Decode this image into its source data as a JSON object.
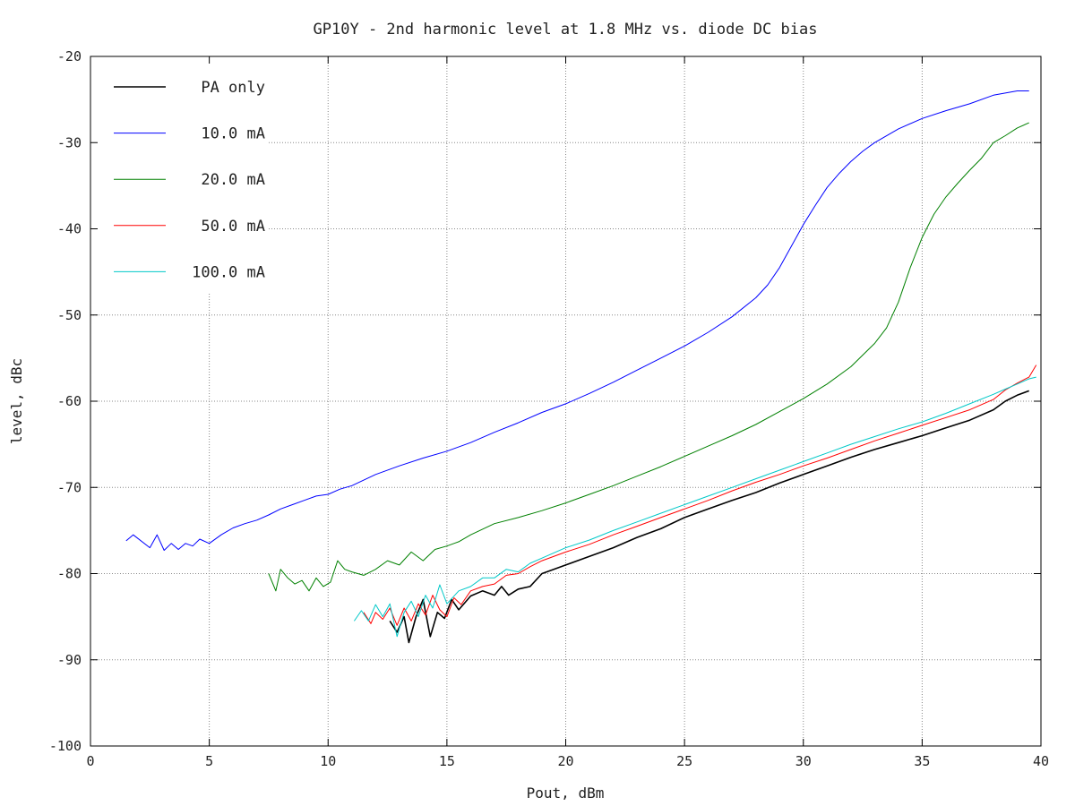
{
  "chart_data": {
    "type": "line",
    "title": "GP10Y - 2nd harmonic level at 1.8 MHz vs. diode DC bias",
    "xlabel": "Pout, dBm",
    "ylabel": "level, dBc",
    "xlim": [
      0,
      40
    ],
    "ylim": [
      -100,
      -20
    ],
    "xticks": [
      0,
      5,
      10,
      15,
      20,
      25,
      30,
      35,
      40
    ],
    "yticks": [
      -100,
      -90,
      -80,
      -70,
      -60,
      -50,
      -40,
      -30,
      -20
    ],
    "grid": true,
    "legend_position": "top-left",
    "series": [
      {
        "name": "PA only",
        "color": "#000000",
        "x": [
          12.6,
          12.9,
          13.2,
          13.4,
          13.7,
          14.0,
          14.3,
          14.6,
          14.9,
          15.2,
          15.5,
          16.0,
          16.5,
          17.0,
          17.3,
          17.6,
          18.0,
          18.5,
          19.0,
          20.0,
          21.0,
          22.0,
          23.0,
          24.0,
          25.0,
          26.0,
          27.0,
          28.0,
          29.0,
          30.0,
          31.0,
          32.0,
          33.0,
          34.0,
          35.0,
          36.0,
          37.0,
          38.0,
          38.5,
          39.0,
          39.5
        ],
        "values": [
          -85.5,
          -86.8,
          -85.0,
          -88.0,
          -85.0,
          -83.0,
          -87.3,
          -84.5,
          -85.2,
          -83.0,
          -84.2,
          -82.6,
          -82.0,
          -82.5,
          -81.5,
          -82.5,
          -81.8,
          -81.5,
          -80.0,
          -79.0,
          -78.0,
          -77.0,
          -75.8,
          -74.8,
          -73.5,
          -72.5,
          -71.5,
          -70.6,
          -69.5,
          -68.5,
          -67.5,
          -66.5,
          -65.6,
          -64.8,
          -64.0,
          -63.1,
          -62.2,
          -61.0,
          -60.0,
          -59.3,
          -58.8
        ]
      },
      {
        "name": "10.0 mA",
        "color": "#0000ff",
        "x": [
          1.5,
          1.8,
          2.5,
          2.8,
          3.1,
          3.4,
          3.7,
          4.0,
          4.3,
          4.6,
          5.0,
          5.5,
          6.0,
          6.5,
          7.0,
          7.5,
          8.0,
          8.5,
          9.0,
          9.5,
          10.0,
          10.5,
          11.0,
          12.0,
          13.0,
          14.0,
          15.0,
          16.0,
          17.0,
          18.0,
          19.0,
          20.0,
          21.0,
          22.0,
          23.0,
          24.0,
          25.0,
          26.0,
          27.0,
          28.0,
          28.5,
          29.0,
          29.5,
          30.0,
          30.5,
          31.0,
          31.5,
          32.0,
          32.5,
          33.0,
          34.0,
          35.0,
          36.0,
          37.0,
          38.0,
          39.0,
          39.5
        ],
        "values": [
          -76.2,
          -75.5,
          -77.0,
          -75.5,
          -77.3,
          -76.5,
          -77.2,
          -76.5,
          -76.8,
          -76.0,
          -76.5,
          -75.5,
          -74.7,
          -74.2,
          -73.8,
          -73.2,
          -72.5,
          -72.0,
          -71.5,
          -71.0,
          -70.8,
          -70.2,
          -69.8,
          -68.5,
          -67.5,
          -66.6,
          -65.8,
          -64.8,
          -63.6,
          -62.5,
          -61.3,
          -60.3,
          -59.1,
          -57.8,
          -56.4,
          -55.0,
          -53.6,
          -52.0,
          -50.2,
          -48.0,
          -46.5,
          -44.5,
          -42.0,
          -39.5,
          -37.3,
          -35.2,
          -33.6,
          -32.2,
          -31.0,
          -30.0,
          -28.4,
          -27.2,
          -26.3,
          -25.5,
          -24.5,
          -24.0,
          -24.0
        ]
      },
      {
        "name": "20.0 mA",
        "color": "#008000",
        "x": [
          7.5,
          7.8,
          8.0,
          8.3,
          8.6,
          8.9,
          9.2,
          9.5,
          9.8,
          10.1,
          10.4,
          10.7,
          11.0,
          11.5,
          12.0,
          12.5,
          13.0,
          13.5,
          14.0,
          14.5,
          15.0,
          15.5,
          16.0,
          17.0,
          18.0,
          19.0,
          20.0,
          21.0,
          22.0,
          23.0,
          24.0,
          25.0,
          26.0,
          27.0,
          28.0,
          29.0,
          30.0,
          31.0,
          32.0,
          33.0,
          33.5,
          34.0,
          34.5,
          35.0,
          35.5,
          36.0,
          36.5,
          37.0,
          37.5,
          38.0,
          38.5,
          39.0,
          39.5
        ],
        "values": [
          -80.0,
          -82.0,
          -79.5,
          -80.5,
          -81.2,
          -80.8,
          -82.0,
          -80.5,
          -81.5,
          -81.0,
          -78.5,
          -79.5,
          -79.8,
          -80.2,
          -79.5,
          -78.5,
          -79.0,
          -77.5,
          -78.5,
          -77.2,
          -76.8,
          -76.3,
          -75.5,
          -74.2,
          -73.5,
          -72.7,
          -71.8,
          -70.8,
          -69.8,
          -68.7,
          -67.6,
          -66.4,
          -65.2,
          -64.0,
          -62.7,
          -61.2,
          -59.7,
          -58.0,
          -56.0,
          -53.3,
          -51.5,
          -48.5,
          -44.5,
          -41.0,
          -38.3,
          -36.3,
          -34.7,
          -33.2,
          -31.8,
          -30.0,
          -29.2,
          -28.3,
          -27.7
        ]
      },
      {
        "name": "50.0 mA",
        "color": "#ff0000",
        "x": [
          11.5,
          11.8,
          12.0,
          12.3,
          12.6,
          12.9,
          13.2,
          13.5,
          13.8,
          14.1,
          14.4,
          14.7,
          15.0,
          15.3,
          15.6,
          16.0,
          16.5,
          17.0,
          17.5,
          18.0,
          18.5,
          19.0,
          20.0,
          21.0,
          22.0,
          23.0,
          24.0,
          25.0,
          26.0,
          27.0,
          28.0,
          29.0,
          30.0,
          31.0,
          32.0,
          33.0,
          34.0,
          35.0,
          36.0,
          37.0,
          38.0,
          38.5,
          39.0,
          39.5,
          39.8
        ],
        "values": [
          -84.5,
          -85.8,
          -84.5,
          -85.3,
          -84.0,
          -86.0,
          -84.0,
          -85.5,
          -83.5,
          -84.8,
          -82.5,
          -84.2,
          -85.0,
          -82.8,
          -83.6,
          -82.0,
          -81.5,
          -81.2,
          -80.2,
          -80.0,
          -79.2,
          -78.5,
          -77.5,
          -76.6,
          -75.5,
          -74.5,
          -73.5,
          -72.5,
          -71.5,
          -70.4,
          -69.4,
          -68.5,
          -67.5,
          -66.6,
          -65.6,
          -64.6,
          -63.7,
          -62.8,
          -61.9,
          -61.0,
          -59.8,
          -58.7,
          -57.9,
          -57.2,
          -55.8
        ]
      },
      {
        "name": "100.0 mA",
        "color": "#00c8c8",
        "x": [
          11.1,
          11.4,
          11.7,
          12.0,
          12.3,
          12.6,
          12.9,
          13.2,
          13.5,
          13.8,
          14.1,
          14.4,
          14.7,
          15.0,
          15.5,
          16.0,
          16.5,
          17.0,
          17.5,
          18.0,
          18.5,
          19.0,
          20.0,
          21.0,
          22.0,
          23.0,
          24.0,
          25.0,
          26.0,
          27.0,
          28.0,
          29.0,
          30.0,
          31.0,
          32.0,
          33.0,
          34.0,
          35.0,
          36.0,
          37.0,
          38.0,
          38.5,
          39.0,
          39.5,
          39.8
        ],
        "values": [
          -85.5,
          -84.3,
          -85.5,
          -83.6,
          -85.0,
          -83.5,
          -87.3,
          -84.5,
          -83.2,
          -85.0,
          -82.5,
          -84.0,
          -81.3,
          -83.5,
          -82.0,
          -81.5,
          -80.5,
          -80.5,
          -79.5,
          -79.8,
          -78.8,
          -78.2,
          -77.0,
          -76.1,
          -75.0,
          -74.0,
          -73.0,
          -72.0,
          -71.0,
          -70.0,
          -69.0,
          -68.0,
          -67.0,
          -66.0,
          -65.0,
          -64.1,
          -63.2,
          -62.4,
          -61.4,
          -60.3,
          -59.2,
          -58.6,
          -58.0,
          -57.4,
          -57.2
        ]
      }
    ]
  }
}
